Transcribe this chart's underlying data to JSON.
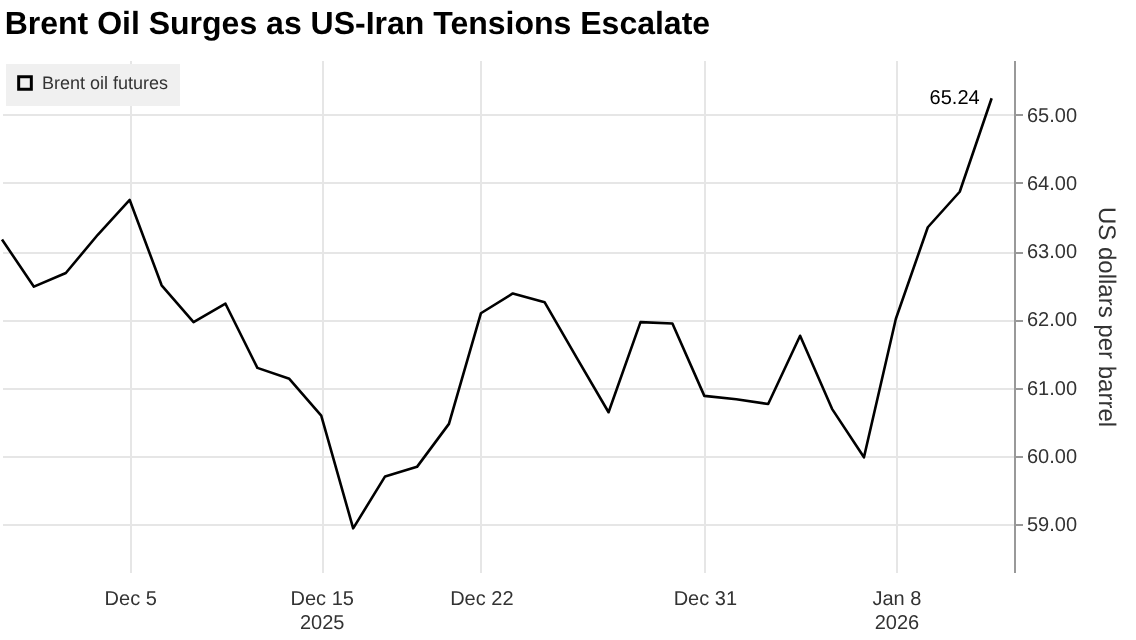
{
  "chart_data": {
    "type": "line",
    "title": "Brent Oil Surges as US-Iran Tensions Escalate",
    "ylabel": "US dollars per barrel",
    "categories": [
      null,
      null,
      null,
      null,
      "Dec 5",
      null,
      null,
      null,
      null,
      null,
      "Dec 15\n2025",
      null,
      null,
      null,
      null,
      "Dec 22",
      null,
      null,
      null,
      null,
      null,
      null,
      "Dec 31",
      null,
      null,
      null,
      null,
      null,
      "Jan 8\n2026",
      null,
      null,
      null
    ],
    "series": [
      {
        "name": "Brent oil futures",
        "color": "#000000",
        "values": [
          63.17,
          62.48,
          62.68,
          63.24,
          63.75,
          62.5,
          61.96,
          62.23,
          61.29,
          61.13,
          60.59,
          58.94,
          59.7,
          59.84,
          60.47,
          62.09,
          62.38,
          62.25,
          61.44,
          60.64,
          61.96,
          61.94,
          60.88,
          60.83,
          60.76,
          61.76,
          60.69,
          59.98,
          62.01,
          63.35,
          63.87,
          65.24
        ],
        "value_labels": [
          null,
          null,
          null,
          null,
          null,
          null,
          null,
          null,
          null,
          null,
          null,
          null,
          null,
          null,
          null,
          null,
          null,
          null,
          null,
          null,
          null,
          null,
          null,
          null,
          null,
          null,
          null,
          null,
          null,
          null,
          null,
          "65.24"
        ]
      }
    ],
    "ylim": [
      58.3,
      65.8
    ],
    "yticks": [
      {
        "value": 59,
        "label": "59.00"
      },
      {
        "value": 60,
        "label": "60.00"
      },
      {
        "value": 61,
        "label": "61.00"
      },
      {
        "value": 62,
        "label": "62.00"
      },
      {
        "value": 63,
        "label": "63.00"
      },
      {
        "value": 64,
        "label": "64.00"
      },
      {
        "value": 65,
        "label": "65.00"
      }
    ],
    "grid": true,
    "legend": "top left",
    "line_style": "solid"
  }
}
